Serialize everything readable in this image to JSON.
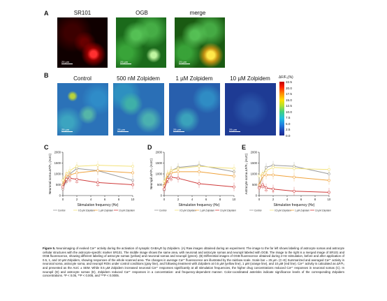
{
  "panel_A": {
    "letter": "A",
    "labels": [
      "SR101",
      "OGB",
      "merge"
    ],
    "scalebar": "25 µm"
  },
  "panel_B": {
    "letter": "B",
    "labels": [
      "Control",
      "500 nM Zolpidem",
      "1 µM Zolpidem",
      "10 µM Zolpidem"
    ],
    "scalebar": "25 µm",
    "colorbar_title": "ΔF/F₀(%)",
    "colorbar_ticks": [
      "22.5",
      "20.0",
      "17.5",
      "15.0",
      "12.5",
      "10.0",
      "7.5",
      "5.0",
      "2.5",
      "0.0"
    ]
  },
  "colors": {
    "control": "#9a9a9a",
    "z05": "#f3e27a",
    "z1": "#f0a23a",
    "z10": "#cf3b3b"
  },
  "chart_data": [
    {
      "type": "line",
      "panel": "C",
      "ylabel": "Neuronal soma ΔF/F₀ (AUC)",
      "xlabel": "Stimulation frequency (Hz)",
      "x": [
        0,
        0.5,
        1,
        2,
        5,
        10
      ],
      "xticks": [
        "0",
        "2",
        "4",
        "6",
        "8",
        "10"
      ],
      "yticks": [
        "0",
        "500",
        "1000",
        "1500",
        "2000"
      ],
      "ylim": [
        0,
        2000
      ],
      "series": [
        {
          "name": "Control",
          "values": [
            300,
            700,
            1000,
            1250,
            1150,
            700
          ]
        },
        {
          "name": "0.5 µM Zolpidem",
          "values": [
            700,
            1000,
            1150,
            1350,
            1400,
            1350
          ]
        },
        {
          "name": "1 µM Zolpidem",
          "values": [
            500,
            900,
            950,
            1050,
            1150,
            1050
          ]
        },
        {
          "name": "10 µM Zolpidem",
          "values": [
            400,
            750,
            800,
            750,
            600,
            500
          ]
        }
      ],
      "annotations": [
        "***",
        "***",
        "***",
        "***"
      ]
    },
    {
      "type": "line",
      "panel": "D",
      "ylabel": "Neuropil ΔF/F₀ (AUC)",
      "xlabel": "Stimulation frequency (Hz)",
      "x": [
        0,
        0.5,
        1,
        2,
        5,
        10
      ],
      "xticks": [
        "0",
        "2",
        "4",
        "6",
        "8",
        "10"
      ],
      "yticks": [
        "0",
        "500",
        "1000",
        "1500",
        "2000"
      ],
      "ylim": [
        0,
        2000
      ],
      "series": [
        {
          "name": "Control",
          "values": [
            250,
            800,
            1150,
            1300,
            1400,
            1100
          ]
        },
        {
          "name": "0.5 µM Zolpidem",
          "values": [
            650,
            1000,
            1150,
            1250,
            1350,
            1250
          ]
        },
        {
          "name": "1 µM Zolpidem",
          "values": [
            450,
            950,
            1050,
            1100,
            1100,
            900
          ]
        },
        {
          "name": "10 µM Zolpidem",
          "values": [
            300,
            750,
            850,
            800,
            550,
            400
          ]
        }
      ],
      "annotations": [
        "***",
        "***"
      ]
    },
    {
      "type": "line",
      "panel": "E",
      "ylabel": "Astrocyte soma ΔF/F₀ (AUC)",
      "xlabel": "Stimulation frequency (Hz)",
      "x": [
        0,
        0.5,
        1,
        2,
        5,
        10
      ],
      "xticks": [
        "0",
        "2",
        "4",
        "6",
        "8",
        "10"
      ],
      "yticks": [
        "0",
        "500",
        "1000",
        "1500",
        "2000"
      ],
      "ylim": [
        0,
        2000
      ],
      "series": [
        {
          "name": "Control",
          "values": [
            400,
            900,
            1300,
            1400,
            1350,
            1000
          ]
        },
        {
          "name": "0.5 µM Zolpidem",
          "values": [
            900,
            1000,
            1150,
            1300,
            1250,
            1200
          ]
        },
        {
          "name": "1 µM Zolpidem",
          "values": [
            500,
            900,
            950,
            950,
            850,
            700
          ]
        },
        {
          "name": "10 µM Zolpidem",
          "values": [
            350,
            500,
            350,
            300,
            200,
            150
          ]
        }
      ],
      "annotations": [
        "***",
        "***",
        "**"
      ]
    }
  ],
  "caption": {
    "figure_label": "Figure 5.",
    "text": "Neuroimaging of evoked Ca²⁺ activity during the activation of synaptic GABAₐR by Zolpidem. (A) Raw images obtained during an experiment. The image to the far left shows labeling of astrocyte somas and astrocyte cellular structures with the astrocyte-specific marker SR101. The middle image shows the same area, with neuronal and astrocyte somas and neuropil labeled with OGB. The image to the right is a merged image of SR101 and OGB fluorescence, showing different labeling of astrocyte somas (yellow) and neuronal somas and neuropil (green). (B) Differential images of OGB fluorescence obtained during 2-Hz stimulation, before and after application of 0.5, 1, and 10 µM Zolpidem, showing responses of the whole scanned area. The changes in average Ca²⁺ fluorescence are illustrated by the rainbow scale. Scale bar = 25 µm. (C–E) Summarized and averaged Ca²⁺ activity in neuronal soma, astrocyte soma, and neuropil ROIs under control conditions (gray line), and following treatment with Zolpidem at 0.5 µM (yellow line), 1 µM (orange line), and 10 µM (red line). Ca²⁺ activity is calculated as ΔF/F₀ and presented as the AUC ± SEM. While 0.5 µM Zolpidem increased neuronal Ca²⁺ responses significantly at all stimulation frequencies, the higher drug concentrations reduced Ca²⁺ responses in neuronal somas (C). In neuropil (D) and astrocyte somas (E), Zolpidem reduced Ca²⁺ responses in a concentration- and frequency-dependent manner. Color-coordinated asterisks indicate significance levels of the corresponding Zolpidem concentrations. *P < 0.05, **P < 0.005, and ***P < 0.0005."
  }
}
